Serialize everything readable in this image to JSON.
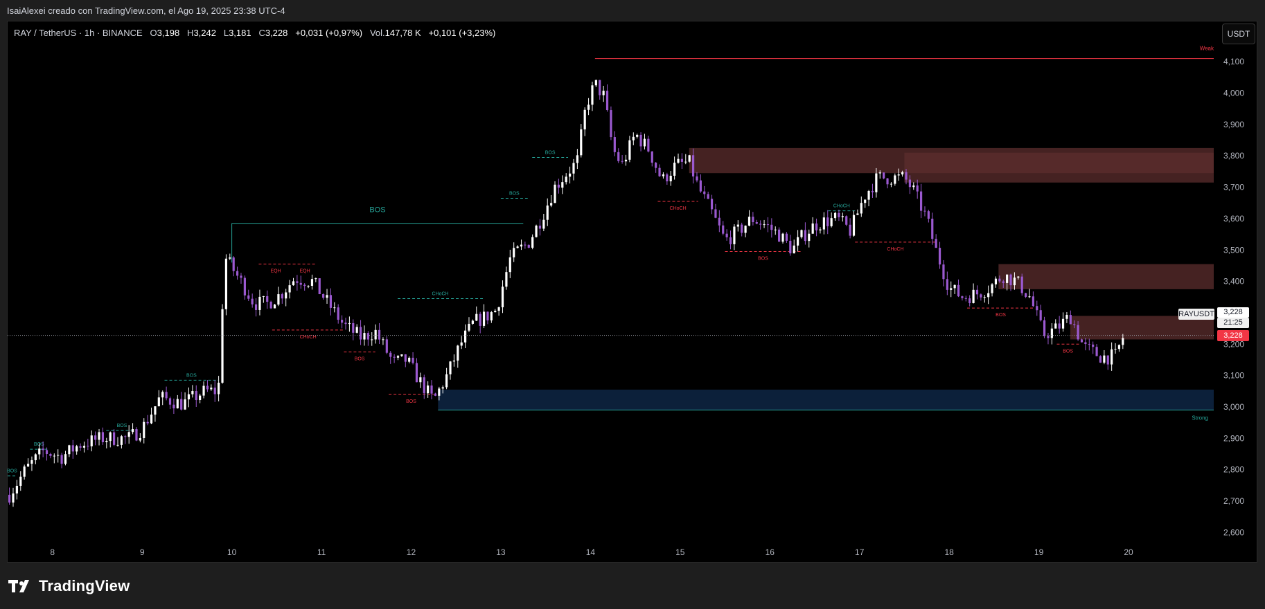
{
  "header": {
    "caption": "IsaiAlexei creado con TradingView.com, el Ago 19, 2025 23:38 UTC-4"
  },
  "legend": {
    "symbol": "RAY / TetherUS · 1h · BINANCE",
    "o_label": "O",
    "o_value": "3,198",
    "h_label": "H",
    "h_value": "3,242",
    "l_label": "L",
    "l_value": "3,181",
    "c_label": "C",
    "c_value": "3,228",
    "change": "+0,031 (+0,97%)",
    "vol_label": "Vol.",
    "vol_value": "147,78 K",
    "vol_change": "+0,101 (+3,23%)"
  },
  "currency_button": "USDT",
  "price_tag": {
    "symbol": "RAYUSDT",
    "price": "3,228",
    "countdown": "21:25",
    "last_price": "3,228"
  },
  "footer": {
    "brand": "TradingView"
  },
  "colors": {
    "bull": "#ffffff",
    "bear": "#9b59d0",
    "bos_up": "#26a69a",
    "bos_down": "#f23645",
    "supply_zone": "#5c2e2e",
    "demand_zone": "#0d2340"
  },
  "chart_data": {
    "type": "candlestick",
    "interval": "1h",
    "x_tick_labels": [
      "8",
      "9",
      "10",
      "11",
      "12",
      "13",
      "14",
      "15",
      "16",
      "17",
      "18",
      "19",
      "20"
    ],
    "y_tick_labels": [
      "2,600",
      "2,700",
      "2,800",
      "2,900",
      "3,000",
      "3,100",
      "3,200",
      "3,300",
      "3,400",
      "3,500",
      "3,600",
      "3,700",
      "3,800",
      "3,900",
      "4,000",
      "4,100"
    ],
    "ylim": [
      2550,
      4160
    ],
    "xlim_days": [
      7.5,
      20.95
    ],
    "close_path": [
      [
        7.52,
        2.72
      ],
      [
        7.7,
        2.8
      ],
      [
        7.9,
        2.86
      ],
      [
        8.1,
        2.84
      ],
      [
        8.3,
        2.88
      ],
      [
        8.55,
        2.9
      ],
      [
        8.7,
        2.9
      ],
      [
        8.85,
        2.9
      ],
      [
        9.0,
        2.93
      ],
      [
        9.2,
        3.03
      ],
      [
        9.45,
        3.01
      ],
      [
        9.7,
        3.05
      ],
      [
        9.85,
        3.05
      ],
      [
        9.92,
        3.48
      ],
      [
        10.1,
        3.4
      ],
      [
        10.25,
        3.33
      ],
      [
        10.4,
        3.33
      ],
      [
        10.55,
        3.36
      ],
      [
        10.7,
        3.41
      ],
      [
        10.9,
        3.4
      ],
      [
        11.05,
        3.34
      ],
      [
        11.25,
        3.26
      ],
      [
        11.45,
        3.22
      ],
      [
        11.6,
        3.24
      ],
      [
        11.8,
        3.14
      ],
      [
        11.95,
        3.15
      ],
      [
        12.1,
        3.08
      ],
      [
        12.25,
        3.02
      ],
      [
        12.4,
        3.1
      ],
      [
        12.55,
        3.2
      ],
      [
        12.7,
        3.27
      ],
      [
        12.85,
        3.29
      ],
      [
        12.95,
        3.31
      ],
      [
        13.1,
        3.47
      ],
      [
        13.2,
        3.5
      ],
      [
        13.3,
        3.52
      ],
      [
        13.45,
        3.6
      ],
      [
        13.6,
        3.7
      ],
      [
        13.75,
        3.75
      ],
      [
        13.85,
        3.78
      ],
      [
        13.95,
        3.96
      ],
      [
        14.05,
        4.03
      ],
      [
        14.15,
        3.99
      ],
      [
        14.25,
        3.82
      ],
      [
        14.35,
        3.77
      ],
      [
        14.5,
        3.87
      ],
      [
        14.65,
        3.82
      ],
      [
        14.8,
        3.72
      ],
      [
        14.95,
        3.77
      ],
      [
        15.1,
        3.78
      ],
      [
        15.2,
        3.7
      ],
      [
        15.35,
        3.62
      ],
      [
        15.5,
        3.53
      ],
      [
        15.65,
        3.56
      ],
      [
        15.8,
        3.6
      ],
      [
        15.95,
        3.58
      ],
      [
        16.1,
        3.55
      ],
      [
        16.25,
        3.5
      ],
      [
        16.35,
        3.54
      ],
      [
        16.5,
        3.58
      ],
      [
        16.6,
        3.59
      ],
      [
        16.75,
        3.6
      ],
      [
        16.9,
        3.56
      ],
      [
        17.05,
        3.67
      ],
      [
        17.2,
        3.73
      ],
      [
        17.35,
        3.73
      ],
      [
        17.5,
        3.73
      ],
      [
        17.6,
        3.69
      ],
      [
        17.75,
        3.6
      ],
      [
        17.85,
        3.5
      ],
      [
        18.0,
        3.38
      ],
      [
        18.15,
        3.35
      ],
      [
        18.3,
        3.36
      ],
      [
        18.45,
        3.38
      ],
      [
        18.6,
        3.42
      ],
      [
        18.75,
        3.4
      ],
      [
        18.9,
        3.35
      ],
      [
        19.05,
        3.23
      ],
      [
        19.2,
        3.25
      ],
      [
        19.35,
        3.29
      ],
      [
        19.5,
        3.19
      ],
      [
        19.7,
        3.16
      ],
      [
        19.85,
        3.16
      ],
      [
        19.95,
        3.23
      ]
    ],
    "structure_lines": [
      {
        "label": "BOS",
        "direction": "up",
        "y": 2.78,
        "x0": 7.5,
        "x1": 7.6
      },
      {
        "label": "BOS",
        "direction": "up",
        "y": 2.865,
        "x0": 7.75,
        "x1": 7.95
      },
      {
        "label": "BOS",
        "direction": "up",
        "y": 2.925,
        "x0": 8.6,
        "x1": 8.95
      },
      {
        "label": "BOS",
        "direction": "up",
        "y": 3.085,
        "x0": 9.25,
        "x1": 9.85
      },
      {
        "label": "BOS",
        "direction": "up",
        "y": 3.585,
        "x0": 10.0,
        "x1": 13.25
      },
      {
        "label": "CHoCH",
        "direction": "up",
        "y": 3.345,
        "x0": 11.85,
        "x1": 12.8
      },
      {
        "label": "BOS",
        "direction": "up",
        "y": 3.665,
        "x0": 13.0,
        "x1": 13.3
      },
      {
        "label": "BOS",
        "direction": "up",
        "y": 3.795,
        "x0": 13.35,
        "x1": 13.75
      },
      {
        "label": "CHoCH",
        "direction": "up",
        "y": 3.625,
        "x0": 16.65,
        "x1": 16.95
      },
      {
        "label": "EQH",
        "direction": "down",
        "y": 3.455,
        "x0": 10.3,
        "x1": 10.68
      },
      {
        "label": "EQH",
        "direction": "down",
        "y": 3.455,
        "x0": 10.68,
        "x1": 10.95
      },
      {
        "label": "CHoCH",
        "direction": "down",
        "y": 3.245,
        "x0": 10.45,
        "x1": 11.25
      },
      {
        "label": "BOS",
        "direction": "down",
        "y": 3.175,
        "x0": 11.25,
        "x1": 11.6
      },
      {
        "label": "BOS",
        "direction": "down",
        "y": 3.04,
        "x0": 11.75,
        "x1": 12.25
      },
      {
        "label": "CHoCH",
        "direction": "down",
        "y": 3.655,
        "x0": 14.75,
        "x1": 15.2
      },
      {
        "label": "BOS",
        "direction": "down",
        "y": 3.495,
        "x0": 15.5,
        "x1": 16.35
      },
      {
        "label": "CHoCH",
        "direction": "down",
        "y": 3.525,
        "x0": 16.95,
        "x1": 17.85
      },
      {
        "label": "BOS",
        "direction": "down",
        "y": 3.315,
        "x0": 18.2,
        "x1": 18.95
      },
      {
        "label": "BOS",
        "direction": "down",
        "y": 3.2,
        "x0": 19.2,
        "x1": 19.45
      }
    ],
    "zones": [
      {
        "kind": "supply",
        "y_low": 3.745,
        "y_high": 3.825,
        "x0": 15.1,
        "x1": 20.95
      },
      {
        "kind": "supply",
        "y_low": 3.715,
        "y_high": 3.81,
        "x0": 17.5,
        "x1": 20.95
      },
      {
        "kind": "supply",
        "y_low": 3.375,
        "y_high": 3.455,
        "x0": 18.55,
        "x1": 20.95
      },
      {
        "kind": "supply",
        "y_low": 3.215,
        "y_high": 3.29,
        "x0": 19.35,
        "x1": 20.95
      },
      {
        "kind": "demand",
        "y_low": 2.99,
        "y_high": 3.055,
        "x0": 12.3,
        "x1": 20.95
      }
    ],
    "weak_high": {
      "label": "Weak",
      "price": 4.11,
      "x0": 14.05
    },
    "strong_low": {
      "label": "Strong",
      "price": 2.99,
      "x0": 12.3
    },
    "current_price": 3.228
  }
}
